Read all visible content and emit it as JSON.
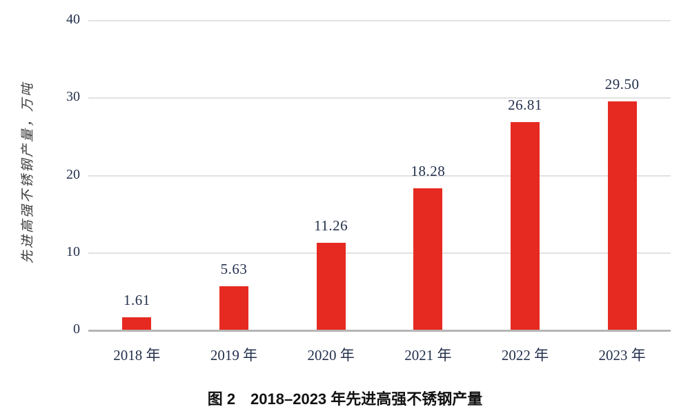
{
  "figure": {
    "caption": "图 2　2018–2023 年先进高强不锈钢产量"
  },
  "chart_data": {
    "type": "bar",
    "title": "",
    "categories": [
      "2018 年",
      "2019 年",
      "2020 年",
      "2021 年",
      "2022 年",
      "2023 年"
    ],
    "values": [
      1.61,
      5.63,
      11.26,
      18.28,
      26.81,
      29.5
    ],
    "value_labels": [
      "1.61",
      "5.63",
      "11.26",
      "18.28",
      "26.81",
      "29.50"
    ],
    "xlabel": "",
    "ylabel": "先进高强不锈钢产量，万吨",
    "ylim": [
      0,
      40
    ],
    "y_ticks": [
      0,
      10,
      20,
      30,
      40
    ],
    "grid": "horizontal",
    "legend": "none",
    "colors": {
      "bar": "#e62a21",
      "gridline": "#e2e2e2",
      "axis": "#b5b5b5",
      "tick_text": "#23304c",
      "value_text": "#23304c",
      "category_text": "#23304c",
      "ylabel_text": "#3c3c3c"
    }
  }
}
